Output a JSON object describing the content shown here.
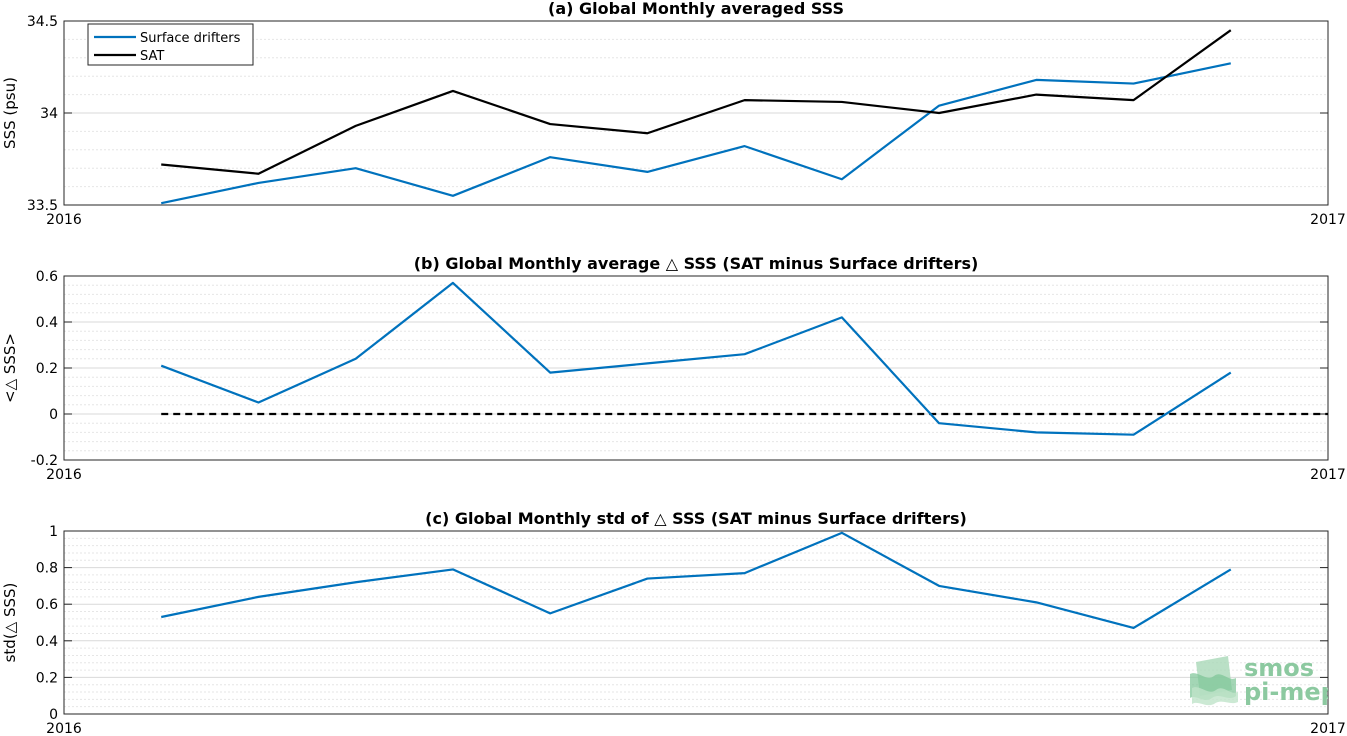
{
  "chart_data": [
    {
      "type": "line",
      "title": "(a) Global Monthly averaged SSS",
      "ylabel": "SSS (psu)",
      "xlabel": "",
      "x_range": [
        "2016",
        "2017"
      ],
      "xticks": [
        "2016",
        "2017"
      ],
      "ylim": [
        33.5,
        34.5
      ],
      "yticks": [
        33.5,
        34,
        34.5
      ],
      "ytick_labels": [
        "33.5",
        "34",
        "34.5"
      ],
      "grid": true,
      "legend": "top-left",
      "x": [
        1.5,
        2.5,
        3.5,
        4.5,
        5.5,
        6.5,
        7.5,
        8.5,
        9.5,
        10.5,
        11.5,
        12.5
      ],
      "series": [
        {
          "name": "Surface drifters",
          "color": "#0072bd",
          "values": [
            33.51,
            33.62,
            33.7,
            33.55,
            33.76,
            33.68,
            33.82,
            33.64,
            34.04,
            34.18,
            34.16,
            34.27
          ]
        },
        {
          "name": "SAT",
          "color": "#000000",
          "values": [
            33.72,
            33.67,
            33.93,
            34.12,
            33.94,
            33.89,
            34.07,
            34.06,
            34.0,
            34.1,
            34.07,
            34.45
          ]
        }
      ]
    },
    {
      "type": "line",
      "title": "(b) Global Monthly average △ SSS (SAT minus Surface drifters)",
      "ylabel": "<△ SSS>",
      "xlabel": "",
      "x_range": [
        "2016",
        "2017"
      ],
      "xticks": [
        "2016",
        "2017"
      ],
      "ylim": [
        -0.2,
        0.6
      ],
      "yticks": [
        -0.2,
        0,
        0.2,
        0.4,
        0.6
      ],
      "ytick_labels": [
        "-0.2",
        "0",
        "0.2",
        "0.4",
        "0.6"
      ],
      "grid": true,
      "reference_line": {
        "y": 0,
        "style": "dashed",
        "color": "#000000"
      },
      "x": [
        1.5,
        2.5,
        3.5,
        4.5,
        5.5,
        6.5,
        7.5,
        8.5,
        9.5,
        10.5,
        11.5,
        12.5
      ],
      "series": [
        {
          "color": "#0072bd",
          "values": [
            0.21,
            0.05,
            0.24,
            0.57,
            0.18,
            0.22,
            0.26,
            0.42,
            -0.04,
            -0.08,
            -0.09,
            0.18
          ]
        }
      ]
    },
    {
      "type": "line",
      "title": "(c) Global Monthly std of △ SSS (SAT minus Surface drifters)",
      "ylabel": "std(△ SSS)",
      "xlabel": "",
      "x_range": [
        "2016",
        "2017"
      ],
      "xticks": [
        "2016",
        "2017"
      ],
      "ylim": [
        0,
        1
      ],
      "yticks": [
        0,
        0.2,
        0.4,
        0.6,
        0.8,
        1
      ],
      "ytick_labels": [
        "0",
        "0.2",
        "0.4",
        "0.6",
        "0.8",
        "1"
      ],
      "grid": true,
      "x": [
        1.5,
        2.5,
        3.5,
        4.5,
        5.5,
        6.5,
        7.5,
        8.5,
        9.5,
        10.5,
        11.5,
        12.5
      ],
      "series": [
        {
          "color": "#0072bd",
          "values": [
            0.53,
            0.64,
            0.72,
            0.79,
            0.55,
            0.74,
            0.77,
            0.99,
            0.7,
            0.61,
            0.47,
            0.79
          ]
        }
      ]
    }
  ],
  "logo": {
    "line1": "smos",
    "line2": "pi-mep"
  }
}
